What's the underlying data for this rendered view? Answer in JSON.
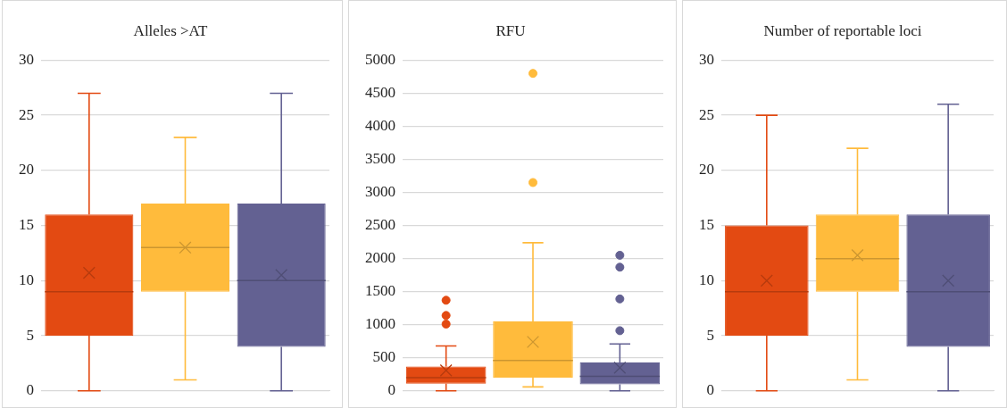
{
  "chart_data": [
    {
      "type": "box",
      "title": "Alleles >AT",
      "categories": [
        null,
        null,
        null
      ],
      "colors": [
        "#e34a12",
        "#ffbb3c",
        "#636192"
      ],
      "boxes": [
        {
          "low": 0,
          "q1": 5,
          "median": 9,
          "q3": 16,
          "high": 27,
          "mean": 10.7
        },
        {
          "low": 1,
          "q1": 9,
          "median": 13,
          "q3": 17,
          "high": 23,
          "mean": 13
        },
        {
          "low": 0,
          "q1": 4,
          "median": 10,
          "q3": 17,
          "high": 27,
          "mean": 10.5
        }
      ],
      "ylim": [
        0,
        30
      ],
      "yticks": [
        0,
        5,
        10,
        15,
        20,
        25,
        30
      ],
      "grid": "y",
      "tick_labels": "y"
    },
    {
      "type": "box",
      "title": "RFU",
      "categories": [
        null,
        null,
        null
      ],
      "colors": [
        "#e34a12",
        "#ffbb3c",
        "#636192"
      ],
      "boxes": [
        {
          "low": 0,
          "q1": 110,
          "median": 200,
          "q3": 370,
          "high": 680,
          "mean": 310,
          "outliers": [
            1010,
            1140,
            1370
          ]
        },
        {
          "low": 60,
          "q1": 200,
          "median": 460,
          "q3": 1050,
          "high": 2240,
          "mean": 740,
          "outliers": [
            3150,
            4800
          ]
        },
        {
          "low": 0,
          "q1": 100,
          "median": 220,
          "q3": 430,
          "high": 710,
          "mean": 350,
          "outliers": [
            910,
            1390,
            1870,
            2050
          ]
        }
      ],
      "ylim": [
        0,
        5000
      ],
      "yticks": [
        0,
        500,
        1000,
        1500,
        2000,
        2500,
        3000,
        3500,
        4000,
        4500,
        5000
      ],
      "grid": "y",
      "tick_labels": "y"
    },
    {
      "type": "box",
      "title": "Number of reportable loci",
      "categories": [
        null,
        null,
        null
      ],
      "colors": [
        "#e34a12",
        "#ffbb3c",
        "#636192"
      ],
      "boxes": [
        {
          "low": 0,
          "q1": 5,
          "median": 9,
          "q3": 15,
          "high": 25,
          "mean": 10
        },
        {
          "low": 1,
          "q1": 9,
          "median": 12,
          "q3": 16,
          "high": 22,
          "mean": 12.3
        },
        {
          "low": 0,
          "q1": 4,
          "median": 9,
          "q3": 16,
          "high": 26,
          "mean": 10
        }
      ],
      "ylim": [
        0,
        30
      ],
      "yticks": [
        0,
        5,
        10,
        15,
        20,
        25,
        30
      ],
      "grid": "y",
      "tick_labels": "y"
    }
  ]
}
